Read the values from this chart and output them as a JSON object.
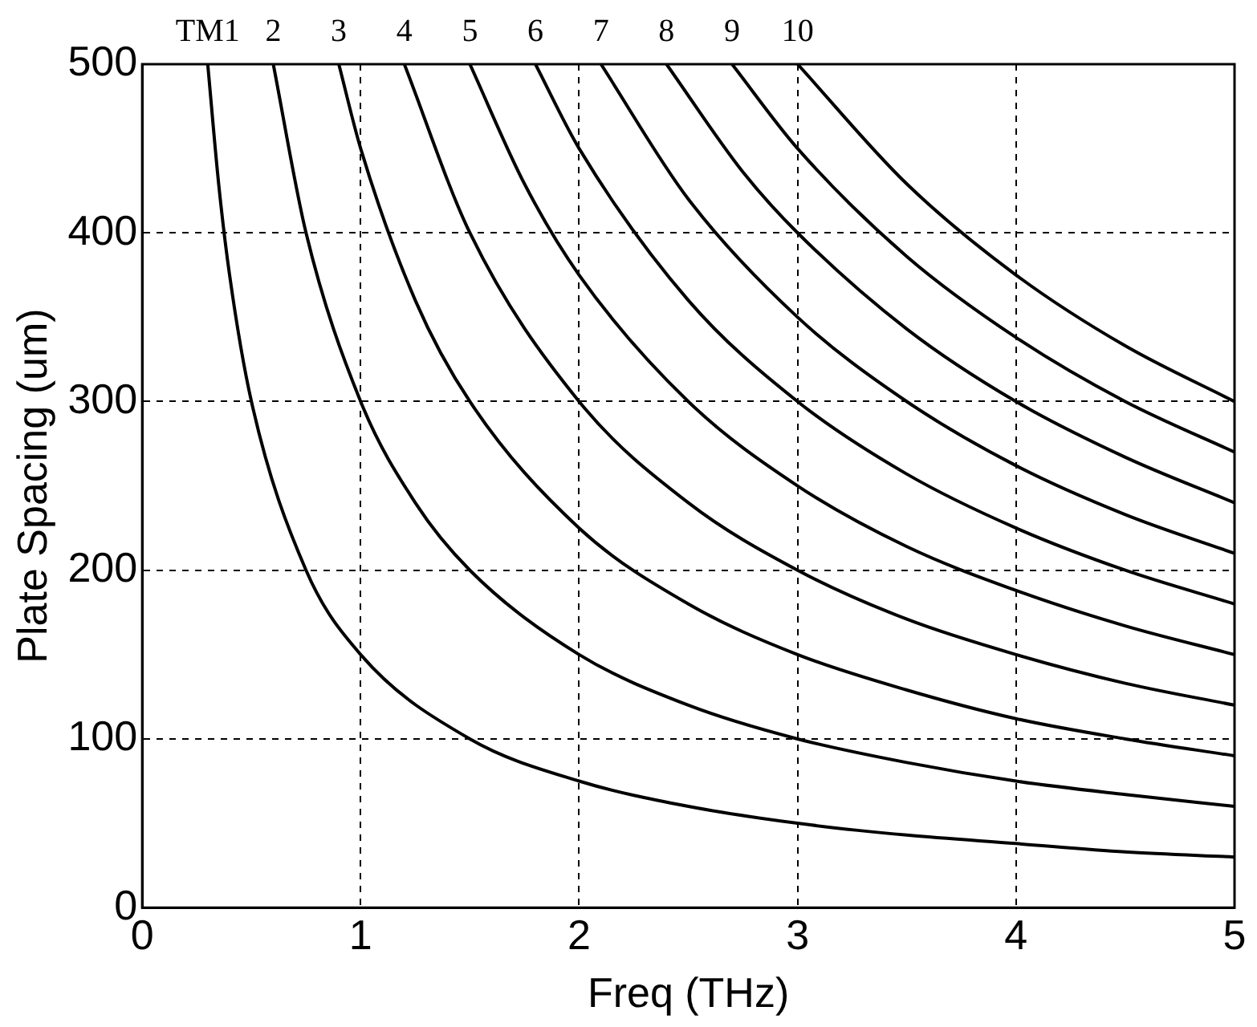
{
  "chart_data": {
    "type": "line",
    "xlabel": "Freq (THz)",
    "ylabel": "Plate Spacing (um)",
    "xlim": [
      0,
      5
    ],
    "xticks": [
      0,
      1,
      2,
      3,
      4,
      5
    ],
    "ylim": [
      0,
      500
    ],
    "yticks": [
      0,
      100,
      200,
      300,
      400,
      500
    ],
    "grid": true,
    "marker": "none",
    "line_style": "solid",
    "series": [
      {
        "name": "TM1",
        "color": "#000000",
        "x": [
          0.3,
          0.35,
          0.4,
          0.5,
          0.75,
          1,
          1.5,
          2,
          2.5,
          3,
          3.5,
          4,
          4.5,
          5
        ],
        "values": [
          500,
          429,
          375,
          300,
          200,
          150,
          100,
          75,
          60,
          50,
          43,
          38,
          33,
          30
        ]
      },
      {
        "name": "2",
        "color": "#000000",
        "x": [
          0.6,
          0.75,
          1,
          1.25,
          1.5,
          2,
          2.5,
          3,
          3.5,
          4,
          4.5,
          5
        ],
        "values": [
          500,
          400,
          300,
          240,
          200,
          150,
          120,
          100,
          86,
          75,
          67,
          60
        ]
      },
      {
        "name": "3",
        "color": "#000000",
        "x": [
          0.9,
          1,
          1.25,
          1.5,
          2,
          2.5,
          3,
          3.5,
          4,
          4.5,
          5
        ],
        "values": [
          500,
          450,
          360,
          300,
          225,
          180,
          150,
          129,
          112,
          100,
          90
        ]
      },
      {
        "name": "4",
        "color": "#000000",
        "x": [
          1.2,
          1.5,
          2,
          2.5,
          3,
          3.5,
          4,
          4.5,
          5
        ],
        "values": [
          500,
          400,
          300,
          240,
          200,
          171,
          150,
          133,
          120
        ]
      },
      {
        "name": "5",
        "color": "#000000",
        "x": [
          1.5,
          1.75,
          2,
          2.5,
          3,
          3.5,
          4,
          4.5,
          5
        ],
        "values": [
          500,
          429,
          375,
          300,
          250,
          214,
          188,
          167,
          150
        ]
      },
      {
        "name": "6",
        "color": "#000000",
        "x": [
          1.8,
          2,
          2.5,
          3,
          3.5,
          4,
          4.5,
          5
        ],
        "values": [
          500,
          450,
          360,
          300,
          257,
          225,
          200,
          180
        ]
      },
      {
        "name": "7",
        "color": "#000000",
        "x": [
          2.1,
          2.5,
          3,
          3.5,
          4,
          4.5,
          5
        ],
        "values": [
          500,
          420,
          350,
          300,
          262,
          233,
          210
        ]
      },
      {
        "name": "8",
        "color": "#000000",
        "x": [
          2.4,
          2.75,
          3,
          3.5,
          4,
          4.5,
          5
        ],
        "values": [
          500,
          436,
          400,
          343,
          300,
          267,
          240
        ]
      },
      {
        "name": "9",
        "color": "#000000",
        "x": [
          2.7,
          3,
          3.5,
          4,
          4.5,
          5
        ],
        "values": [
          500,
          450,
          386,
          338,
          300,
          270
        ]
      },
      {
        "name": "10",
        "color": "#000000",
        "x": [
          3,
          3.5,
          4,
          4.5,
          5
        ],
        "values": [
          500,
          429,
          375,
          333,
          300
        ]
      }
    ]
  }
}
